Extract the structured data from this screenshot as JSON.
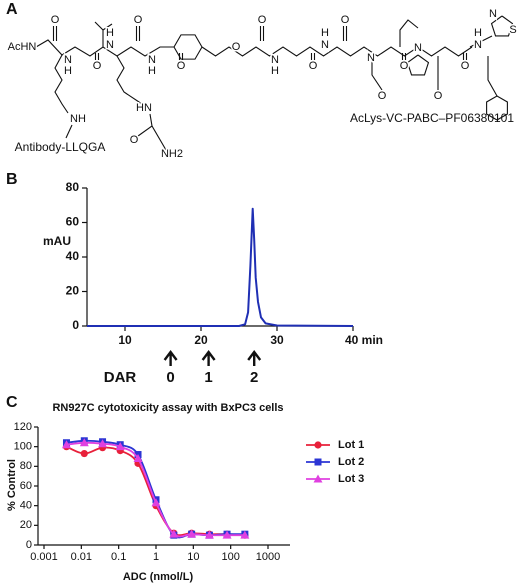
{
  "panels": [
    "A",
    "B",
    "C"
  ],
  "structure": {
    "atoms": [
      "AcHN",
      "O",
      "N",
      "H",
      "O",
      "H",
      "N",
      "O",
      "N",
      "H",
      "O",
      "N",
      "H",
      "O",
      "NH2",
      "N",
      "H",
      "O",
      "O",
      "N",
      "H",
      "O",
      "H",
      "N",
      "O",
      "N",
      "O",
      "O",
      "N",
      "O",
      "O",
      "H",
      "N",
      "N",
      "S"
    ],
    "linker_label": "Antibody-LLQGA",
    "name": "AcLys-VC-PABC–PF06380101"
  },
  "chart_data": [
    {
      "type": "line",
      "ylabel": "mAU",
      "x": [
        5,
        25,
        25.8,
        26.2,
        26.5,
        26.8,
        27.0,
        27.2,
        27.5,
        27.9,
        28.5,
        30,
        40
      ],
      "values": [
        0,
        0,
        1,
        8,
        35,
        68,
        50,
        28,
        14,
        5,
        1.5,
        0.3,
        0
      ],
      "color": "#1f2fb4",
      "xlim": [
        5,
        40
      ],
      "ylim": [
        0,
        80
      ],
      "xticks": [
        10,
        20,
        30,
        {
          "value": 40,
          "label": "40 min"
        }
      ],
      "yticks": [
        0,
        20,
        40,
        60,
        80
      ],
      "annotations": {
        "label": "DAR",
        "markers": [
          {
            "value": 16,
            "label": "0"
          },
          {
            "value": 21,
            "label": "1"
          },
          {
            "value": 27,
            "label": "2"
          }
        ]
      }
    },
    {
      "type": "scatter",
      "title": "RN927C cytotoxicity assay with BxPC3 cells",
      "xlabel": "ADC (nmol/L)",
      "ylabel": "% Control",
      "log_x": true,
      "legend": "upper right",
      "x": [
        0.004,
        0.012,
        0.037,
        0.11,
        0.33,
        1,
        3,
        9,
        27,
        80,
        240
      ],
      "series": [
        {
          "name": "Lot 1",
          "color": "#e8203a",
          "marker": "circle",
          "values": [
            100,
            93,
            99,
            96,
            83,
            40,
            12,
            12,
            11,
            11,
            10
          ]
        },
        {
          "name": "Lot 2",
          "color": "#2b35d4",
          "marker": "square",
          "values": [
            104,
            106,
            105,
            102,
            92,
            46,
            10,
            11,
            10,
            11,
            11
          ]
        },
        {
          "name": "Lot 3",
          "color": "#e040e0",
          "marker": "triangle",
          "values": [
            102,
            104,
            103,
            100,
            88,
            43,
            11,
            11,
            10,
            10,
            10
          ]
        }
      ],
      "xlim": [
        0.001,
        1000
      ],
      "ylim": [
        0,
        120
      ],
      "xticks": [
        0.001,
        0.01,
        0.1,
        1,
        10,
        100,
        1000
      ],
      "yticks": [
        0,
        20,
        40,
        60,
        80,
        100,
        120
      ]
    }
  ]
}
